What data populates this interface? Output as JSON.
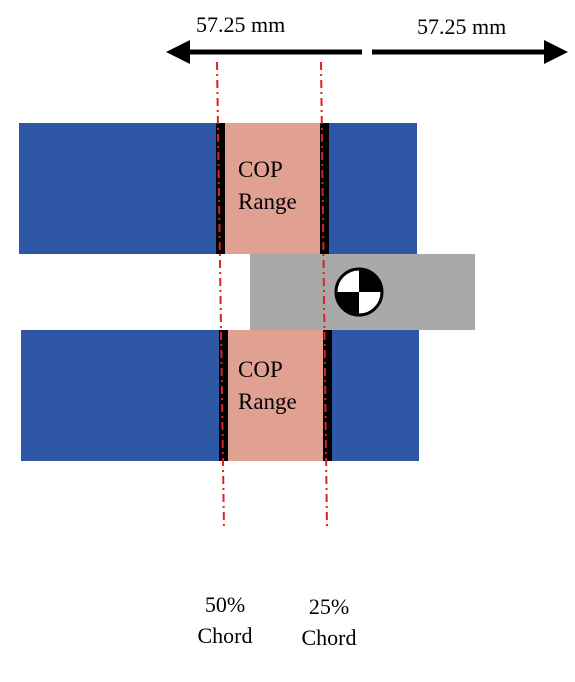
{
  "colors": {
    "wing": "#2e58a6",
    "cop_range": "#e0a193",
    "fuselage": "#a9a9a9",
    "chord_line": "#e02020",
    "arrow": "#000000"
  },
  "dimensions": {
    "left": "57.25 mm",
    "right": "57.25 mm"
  },
  "upper_wing": {
    "cop_line1": "COP",
    "cop_line2": "Range"
  },
  "lower_wing": {
    "cop_line1": "COP",
    "cop_line2": "Range"
  },
  "chord_labels": {
    "fifty": {
      "line1": "50%",
      "line2": "Chord"
    },
    "twentyfive": {
      "line1": "25%",
      "line2": "Chord"
    }
  },
  "icons": {
    "center_of_gravity": "cg-symbol-icon",
    "left_arrow": "arrow-left-icon",
    "right_arrow": "arrow-right-icon"
  }
}
